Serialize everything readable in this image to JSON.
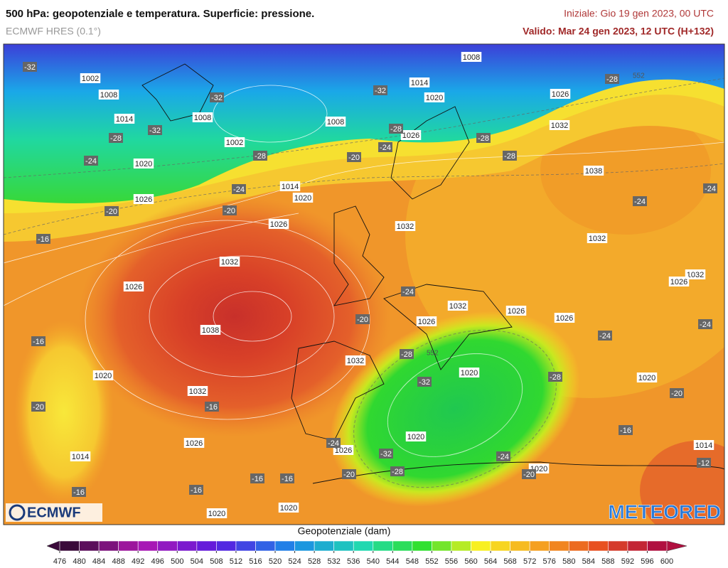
{
  "header": {
    "title": "500 hPa: geopotenziale e temperatura. Superficie: pressione.",
    "model": "ECMWF HRES (0.1°)",
    "initial": "Iniziale: Gio 19 gen 2023, 00 UTC",
    "valid": "Valido: Mar 24 gen 2023, 12 UTC (H+132)"
  },
  "map": {
    "pressure_labels": [
      "1002",
      "1008",
      "1014",
      "1008",
      "1002",
      "1020",
      "1026",
      "1014",
      "1020",
      "1026",
      "1032",
      "1026",
      "1038",
      "1020",
      "1032",
      "1014",
      "1026",
      "1020",
      "1020",
      "1008",
      "1008",
      "1014",
      "1020",
      "1026",
      "1026",
      "1032",
      "1038",
      "1032",
      "1032",
      "1032",
      "1026",
      "1032",
      "1026",
      "1026",
      "1026",
      "1032",
      "1020",
      "1020",
      "1026",
      "1020",
      "1020",
      "1014"
    ],
    "temperature_labels": [
      "-32",
      "-32",
      "-32",
      "-28",
      "-24",
      "-28",
      "-32",
      "-28",
      "-24",
      "-20",
      "-24",
      "-20",
      "-20",
      "-16",
      "-28",
      "-28",
      "-28",
      "-24",
      "-24",
      "-24",
      "-20",
      "-24",
      "-24",
      "-28",
      "-32",
      "-28",
      "-16",
      "-20",
      "-16",
      "-20",
      "-16",
      "-12",
      "-24",
      "-32",
      "-28",
      "-24",
      "-20",
      "-20",
      "-16",
      "-16",
      "-16",
      "-16"
    ],
    "contour_labels": [
      "552",
      "552"
    ]
  },
  "logos": {
    "left": "ECMWF",
    "right": "METEORED"
  },
  "colorbar": {
    "label": "Geopotenziale (dam)",
    "ticks": [
      476,
      480,
      484,
      488,
      492,
      496,
      500,
      504,
      508,
      512,
      516,
      520,
      524,
      528,
      532,
      536,
      540,
      544,
      548,
      552,
      556,
      560,
      564,
      568,
      572,
      576,
      580,
      584,
      588,
      592,
      596,
      600
    ]
  }
}
